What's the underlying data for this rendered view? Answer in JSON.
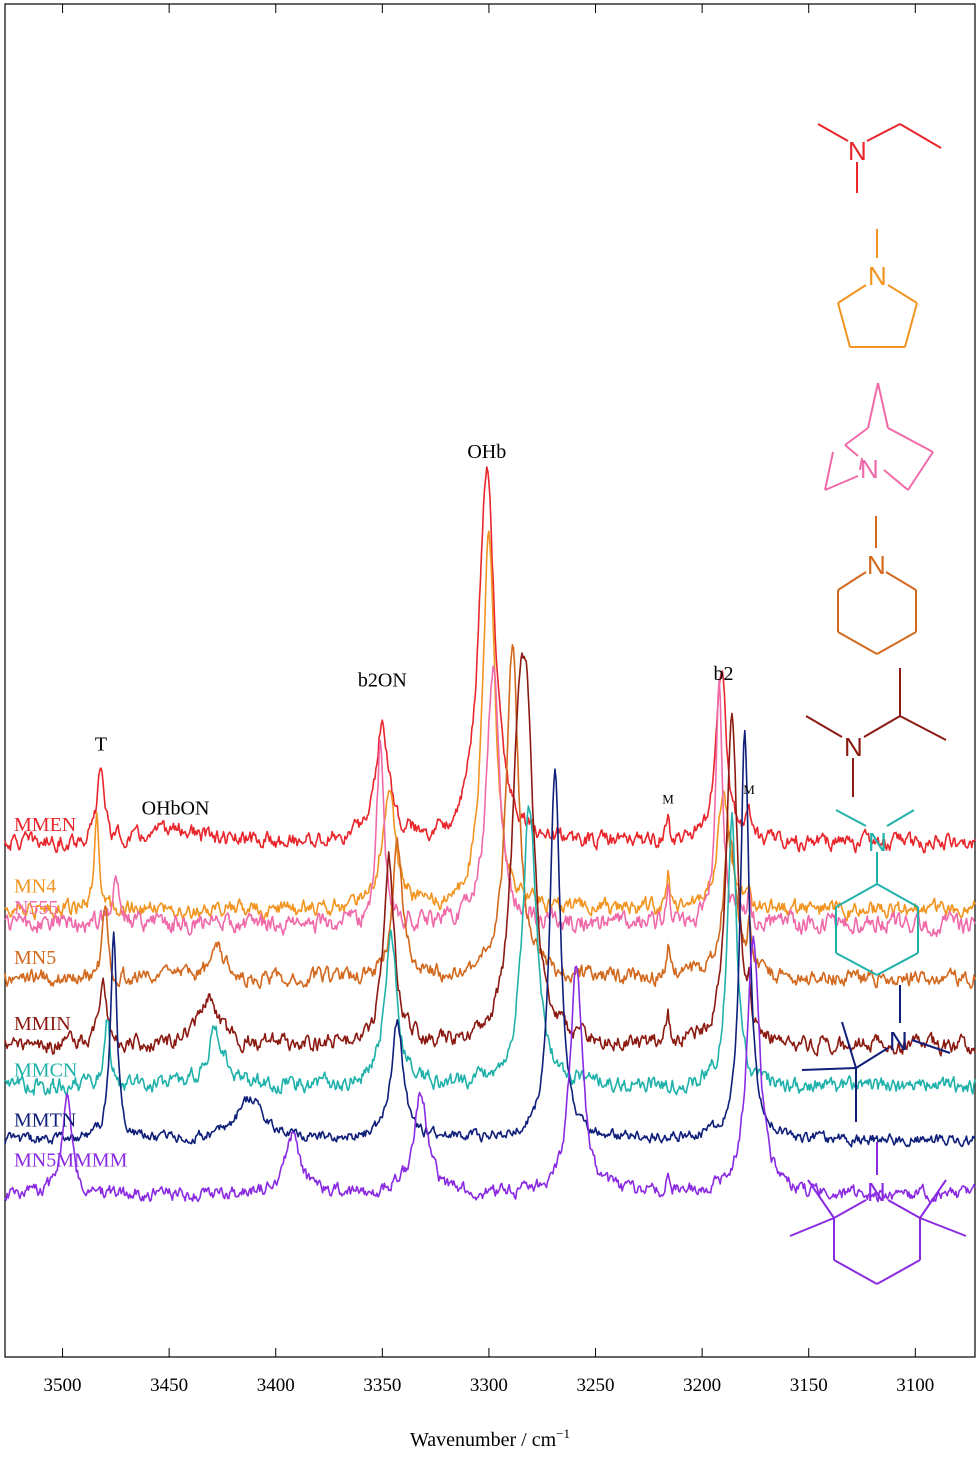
{
  "chart_data": {
    "type": "line",
    "xlabel": "Wavenumber / cm",
    "xlabel_sup": "−1",
    "xlim": [
      3527,
      3072
    ],
    "x_reversed": true,
    "x_ticks": [
      3500,
      3450,
      3400,
      3350,
      3300,
      3250,
      3200,
      3150,
      3100
    ],
    "x_tick_labels": [
      "3500",
      "3450",
      "3400",
      "3350",
      "3300",
      "3250",
      "3200",
      "3150",
      "3100"
    ],
    "peak_labels": [
      {
        "text": "T",
        "x": 3482,
        "size": "normal"
      },
      {
        "text": "OHbON",
        "x": 3447,
        "size": "normal"
      },
      {
        "text": "b2ON",
        "x": 3350,
        "size": "normal"
      },
      {
        "text": "OHb",
        "x": 3301,
        "size": "normal"
      },
      {
        "text": "b2",
        "x": 3190,
        "size": "normal"
      },
      {
        "text": "M",
        "x": 3216,
        "size": "small"
      },
      {
        "text": "M",
        "x": 3178,
        "size": "small"
      }
    ],
    "series": [
      {
        "name": "MMEN",
        "color": "#e8262b",
        "baseline": 3.8,
        "noise": 0.06,
        "peaks": [
          [
            3482,
            0.55,
            2.0
          ],
          [
            3447,
            0.1,
            12
          ],
          [
            3350,
            0.85,
            4.0
          ],
          [
            3301,
            2.75,
            4.5
          ],
          [
            3216,
            0.22,
            0.8
          ],
          [
            3191,
            1.25,
            3.0
          ],
          [
            3178,
            0.25,
            0.8
          ]
        ]
      },
      {
        "name": "MN4",
        "color": "#f29420",
        "baseline": 3.3,
        "noise": 0.06,
        "peaks": [
          [
            3484,
            0.7,
            1.5
          ],
          [
            3347,
            0.85,
            4.0
          ],
          [
            3300,
            2.8,
            3.5
          ],
          [
            3216,
            0.25,
            0.8
          ],
          [
            3190,
            0.85,
            3.5
          ],
          [
            3178,
            0.18,
            0.8
          ]
        ]
      },
      {
        "name": "N555",
        "color": "#f06aa9",
        "baseline": 3.2,
        "noise": 0.07,
        "peaks": [
          [
            3475,
            0.4,
            2.0
          ],
          [
            3351,
            1.3,
            2.0
          ],
          [
            3298,
            1.9,
            3.5
          ],
          [
            3216,
            0.32,
            0.8
          ],
          [
            3192,
            1.9,
            1.8
          ],
          [
            3178,
            0.25,
            0.8
          ]
        ]
      },
      {
        "name": "MN5",
        "color": "#d2691e",
        "baseline": 2.8,
        "noise": 0.06,
        "peaks": [
          [
            3480,
            0.55,
            1.5
          ],
          [
            3427,
            0.2,
            4.0
          ],
          [
            3343,
            0.95,
            3.0
          ],
          [
            3289,
            2.45,
            3.5
          ],
          [
            3216,
            0.2,
            0.8
          ],
          [
            3187,
            1.1,
            3.5
          ],
          [
            3178,
            0.35,
            0.8
          ]
        ]
      },
      {
        "name": "MMIN",
        "color": "#8b1a12",
        "baseline": 2.3,
        "noise": 0.06,
        "peaks": [
          [
            3481,
            0.45,
            2.0
          ],
          [
            3432,
            0.35,
            6.0
          ],
          [
            3347,
            1.4,
            3.0
          ],
          [
            3286,
            1.8,
            4.0
          ],
          [
            3282,
            1.8,
            4.0
          ],
          [
            3216,
            0.25,
            0.8
          ],
          [
            3186,
            2.5,
            3.0
          ],
          [
            3178,
            0.3,
            0.8
          ]
        ]
      },
      {
        "name": "MMCN",
        "color": "#20b2aa",
        "baseline": 2.0,
        "noise": 0.06,
        "peaks": [
          [
            3479,
            0.5,
            1.5
          ],
          [
            3428,
            0.4,
            5.0
          ],
          [
            3346,
            1.1,
            3.5
          ],
          [
            3281,
            2.05,
            4.0
          ],
          [
            3186,
            2.0,
            2.5
          ]
        ]
      },
      {
        "name": "MMTN",
        "color": "#0f1f7a",
        "baseline": 1.6,
        "noise": 0.04,
        "peaks": [
          [
            3476,
            1.55,
            1.8
          ],
          [
            3412,
            0.3,
            8.0
          ],
          [
            3343,
            0.85,
            3.5
          ],
          [
            3269,
            2.75,
            3.0
          ],
          [
            3180,
            3.0,
            2.5
          ]
        ]
      },
      {
        "name": "MN5MMMM",
        "color": "#8a2be2",
        "baseline": 1.2,
        "noise": 0.05,
        "peaks": [
          [
            3498,
            0.75,
            2.5
          ],
          [
            3392,
            0.45,
            4.0
          ],
          [
            3332,
            0.75,
            4.0
          ],
          [
            3259,
            1.7,
            3.5
          ],
          [
            3216,
            0.18,
            0.8
          ],
          [
            3176,
            1.9,
            3.5
          ]
        ]
      }
    ]
  }
}
